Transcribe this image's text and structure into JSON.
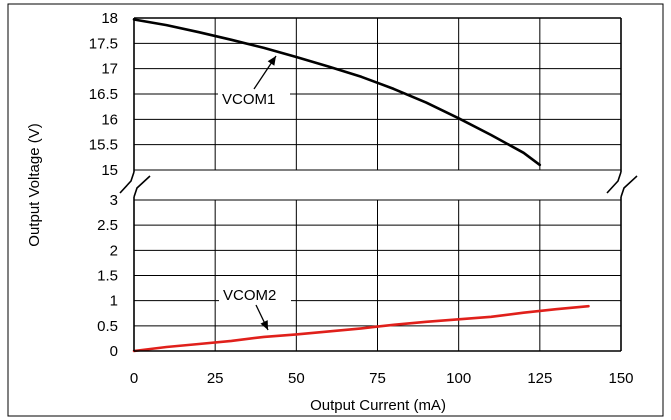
{
  "chart_data": {
    "type": "line",
    "title": "",
    "xlabel": "Output Current (mA)",
    "ylabel": "Output Voltage (V)",
    "xlim": [
      0,
      150
    ],
    "x_ticks": [
      "0",
      "25",
      "50",
      "75",
      "100",
      "125",
      "150"
    ],
    "y_axis_break": {
      "upper_range": [
        15,
        18
      ],
      "lower_range": [
        0,
        3
      ],
      "upper_ticks": [
        "18",
        "17.5",
        "17",
        "16.5",
        "16",
        "15.5",
        "15"
      ],
      "lower_ticks": [
        "3",
        "2.5",
        "2",
        "1.5",
        "1",
        "0.5",
        "0"
      ]
    },
    "grid": true,
    "series": [
      {
        "name": "VCOM1",
        "color": "#000000",
        "points": [
          [
            0,
            17.97
          ],
          [
            10,
            17.86
          ],
          [
            20,
            17.72
          ],
          [
            30,
            17.57
          ],
          [
            40,
            17.41
          ],
          [
            50,
            17.23
          ],
          [
            60,
            17.04
          ],
          [
            70,
            16.84
          ],
          [
            80,
            16.6
          ],
          [
            90,
            16.33
          ],
          [
            100,
            16.02
          ],
          [
            110,
            15.69
          ],
          [
            120,
            15.34
          ],
          [
            125,
            15.1
          ]
        ]
      },
      {
        "name": "VCOM2",
        "color": "#e0201b",
        "points": [
          [
            0,
            0.0
          ],
          [
            10,
            0.08
          ],
          [
            20,
            0.14
          ],
          [
            30,
            0.2
          ],
          [
            40,
            0.28
          ],
          [
            50,
            0.33
          ],
          [
            60,
            0.39
          ],
          [
            70,
            0.45
          ],
          [
            80,
            0.52
          ],
          [
            90,
            0.58
          ],
          [
            100,
            0.63
          ],
          [
            110,
            0.68
          ],
          [
            120,
            0.76
          ],
          [
            130,
            0.83
          ],
          [
            140,
            0.89
          ]
        ]
      }
    ],
    "annotations": [
      {
        "text": "VCOM1",
        "series": "VCOM1"
      },
      {
        "text": "VCOM2",
        "series": "VCOM2"
      }
    ]
  }
}
